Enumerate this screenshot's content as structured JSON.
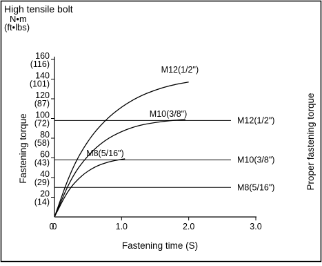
{
  "header": {
    "title": "High tensile bolt",
    "unit_primary": "N•m",
    "unit_secondary": "(ft•lbs)"
  },
  "chart_data": {
    "type": "line",
    "title": "High tensile bolt",
    "xlabel": "Fastening time (S)",
    "ylabel": "Fastening torque",
    "right_label": "Proper fastening torque",
    "xlim": [
      0,
      3.0
    ],
    "ylim": [
      0,
      160
    ],
    "grid": false,
    "x_ticks": [
      {
        "value": 0,
        "label": "0"
      },
      {
        "value": 1.0,
        "label": "1.0"
      },
      {
        "value": 2.0,
        "label": "2.0"
      },
      {
        "value": 3.0,
        "label": "3.0"
      }
    ],
    "y_ticks": [
      {
        "value": 160,
        "label": "160",
        "sub": "(116)"
      },
      {
        "value": 140,
        "label": "140",
        "sub": "(101)"
      },
      {
        "value": 120,
        "label": "120",
        "sub": "(87)"
      },
      {
        "value": 100,
        "label": "100",
        "sub": "(72)"
      },
      {
        "value": 80,
        "label": "80",
        "sub": "(58)"
      },
      {
        "value": 60,
        "label": "60",
        "sub": "(43)"
      },
      {
        "value": 40,
        "label": "40",
        "sub": "(29)"
      },
      {
        "value": 20,
        "label": "20",
        "sub": "(14)"
      }
    ],
    "series": [
      {
        "name": "M12(1/2\")",
        "x": [
          0,
          0.25,
          0.5,
          0.75,
          1.0,
          1.25,
          1.5,
          1.75,
          2.0
        ],
        "y": [
          0,
          48,
          78,
          98,
          112,
          122,
          129,
          134,
          137
        ]
      },
      {
        "name": "M10(3/8\")",
        "x": [
          0,
          0.25,
          0.5,
          0.75,
          1.0,
          1.25,
          1.5,
          1.75,
          1.95
        ],
        "y": [
          0,
          40,
          63,
          78,
          87,
          93,
          96,
          98,
          99
        ]
      },
      {
        "name": "M8(5/16\")",
        "x": [
          0,
          0.2,
          0.4,
          0.6,
          0.8,
          1.0,
          1.05
        ],
        "y": [
          0,
          27,
          42,
          51,
          56,
          58.5,
          59
        ]
      }
    ],
    "reference_lines": [
      {
        "label": "M12(1/2\")",
        "y": 98
      },
      {
        "label": "M10(3/8\")",
        "y": 58
      },
      {
        "label": "M8(5/16\")",
        "y": 30
      }
    ],
    "origin_label": "0"
  }
}
